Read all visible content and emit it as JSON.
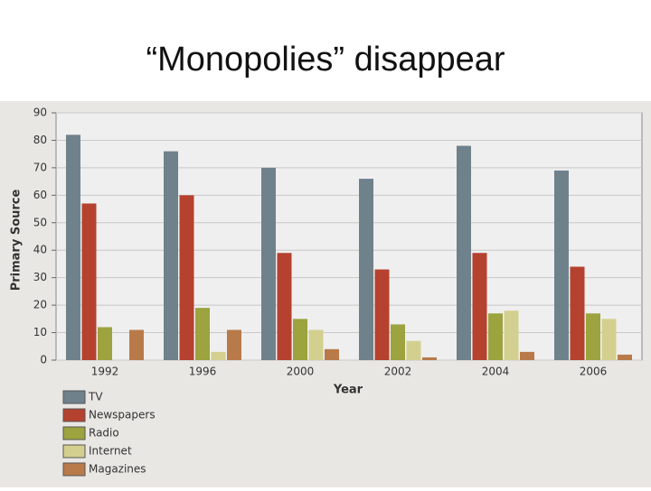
{
  "chart_data": {
    "type": "bar",
    "title": "“Monopolies” disappear",
    "x_label": "Year",
    "y_label": "Primary Source",
    "categories": [
      "1992",
      "1996",
      "2000",
      "2002",
      "2004",
      "2006"
    ],
    "series": [
      {
        "name": "TV",
        "color": "#6f818b",
        "values": [
          82,
          76,
          70,
          66,
          78,
          69
        ]
      },
      {
        "name": "Newspapers",
        "color": "#b5412f",
        "values": [
          57,
          60,
          39,
          33,
          39,
          34
        ]
      },
      {
        "name": "Radio",
        "color": "#9ca33f",
        "values": [
          12,
          19,
          15,
          13,
          17,
          17
        ]
      },
      {
        "name": "Internet",
        "color": "#d3d08f",
        "values": [
          0,
          3,
          11,
          7,
          18,
          15
        ]
      },
      {
        "name": "Magazines",
        "color": "#b97a4a",
        "values": [
          11,
          11,
          4,
          1,
          3,
          2
        ]
      }
    ],
    "ylim": [
      0,
      90
    ],
    "yticks": [
      0,
      10,
      20,
      30,
      40,
      50,
      60,
      70,
      80,
      90
    ],
    "grid": true
  }
}
